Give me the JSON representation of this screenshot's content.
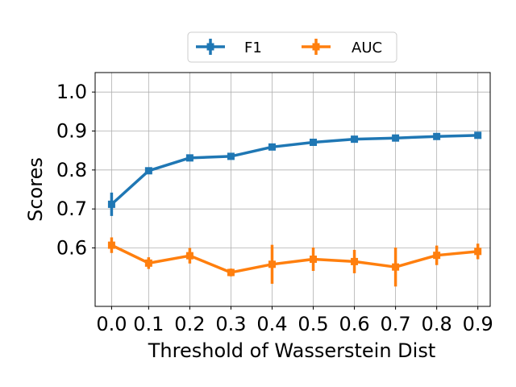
{
  "chart_data": {
    "type": "line",
    "xlabel": "Threshold of Wasserstein Dist",
    "ylabel": "Scores",
    "x": [
      0.01,
      0.1,
      0.2,
      0.3,
      0.4,
      0.5,
      0.6,
      0.7,
      0.8,
      0.9
    ],
    "xtick_labels": [
      "0.0",
      "0.1",
      "0.2",
      "0.3",
      "0.4",
      "0.5",
      "0.6",
      "0.7",
      "0.8",
      "0.9"
    ],
    "xlim": [
      -0.03,
      0.93
    ],
    "yticks": [
      0.6,
      0.7,
      0.8,
      0.9,
      1.0
    ],
    "ytick_labels": [
      "0.6",
      "0.7",
      "0.8",
      "0.9",
      "1.0"
    ],
    "ylim": [
      0.45,
      1.05
    ],
    "grid": true,
    "legend_position": "top-center",
    "series": [
      {
        "name": "F1",
        "color": "#1f77b4",
        "values": [
          0.712,
          0.798,
          0.831,
          0.835,
          0.859,
          0.871,
          0.879,
          0.882,
          0.886,
          0.889
        ],
        "error": [
          0.03,
          0.005,
          0.005,
          0.005,
          0.005,
          0.005,
          0.005,
          0.005,
          0.005,
          0.005
        ]
      },
      {
        "name": "AUC",
        "color": "#ff7f0e",
        "values": [
          0.607,
          0.561,
          0.58,
          0.537,
          0.558,
          0.571,
          0.565,
          0.551,
          0.581,
          0.591
        ],
        "error": [
          0.02,
          0.015,
          0.02,
          0.01,
          0.05,
          0.03,
          0.03,
          0.05,
          0.025,
          0.02
        ]
      }
    ]
  }
}
